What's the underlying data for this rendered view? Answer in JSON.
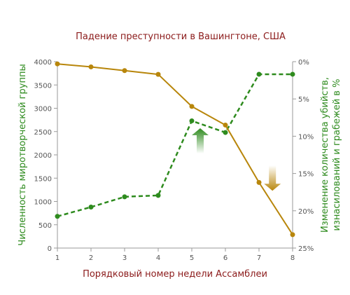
{
  "chart_data": {
    "type": "line",
    "title": "Падение преступности в Вашингтоне, США",
    "xlabel": "Порядковый номер недели Ассамблеи",
    "ylabel_left": "Численность миротворческой группы",
    "ylabel_right": "Изменение количества убийств, изнасилований и грабежей в %",
    "ylabel_right_lines": [
      "Изменение количества убийств,",
      "изнасилований и грабежей в %"
    ],
    "x": [
      1,
      2,
      3,
      4,
      5,
      6,
      7,
      8
    ],
    "x_ticks": [
      "1",
      "2",
      "3",
      "4",
      "5",
      "6",
      "7",
      "8"
    ],
    "ylim_left": [
      0,
      4000
    ],
    "y_ticks_left": [
      "0",
      "500",
      "1000",
      "1500",
      "2000",
      "2500",
      "3000",
      "3500",
      "4000"
    ],
    "y_ticks_right": [
      "0%",
      "5%",
      "10%",
      "15%",
      "20%",
      "25%"
    ],
    "ylim_right_percent": [
      0,
      25
    ],
    "series": [
      {
        "axis": "left",
        "style": "dashed",
        "color": "#2e8b1e",
        "values": [
          680,
          880,
          1100,
          1130,
          2730,
          2480,
          3730,
          3730
        ]
      },
      {
        "axis": "right",
        "style": "solid",
        "color": "#b8860b",
        "values_percent": [
          0.3,
          0.7,
          1.2,
          1.7,
          6.0,
          8.5,
          16.2,
          23.2
        ]
      }
    ],
    "annotations": [
      {
        "type": "arrow-up",
        "color": "#2e8b1e",
        "x": 5.25,
        "y": 2300
      },
      {
        "type": "arrow-down",
        "color": "#b8860b",
        "x": 7.4,
        "y": 1500
      }
    ],
    "grid": false
  }
}
